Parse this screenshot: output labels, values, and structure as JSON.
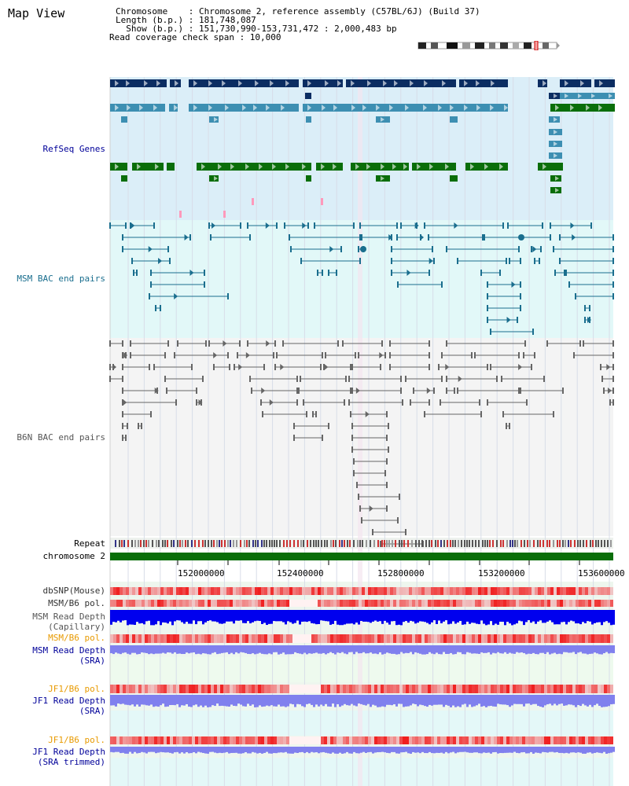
{
  "page": {
    "title": "Map View"
  },
  "info": {
    "chromosome": "Chromosome    : Chromosome 2, reference assembly (C57BL/6J) (Build 37)",
    "length": "Length (b.p.) : 181,748,087",
    "show": "  Show (b.p.) : 151,730,990-153,731,472 : 2,000,483 bp",
    "coverage": "Read coverage check span : 10,000"
  },
  "tracks": {
    "refseq": "RefSeq Genes",
    "msm_bac": "MSM BAC end pairs",
    "b6n_bac": "B6N BAC end pairs",
    "repeat": "Repeat",
    "chromosome": "chromosome 2",
    "dbsnp": "dbSNP(Mouse)",
    "msm_pol1": "MSM/B6 pol.",
    "msm_depth_cap_1": "MSM Read Depth",
    "msm_depth_cap_2": "(Capillary)",
    "msm_pol2": "MSM/B6 pol.",
    "msm_depth_sra_1": "MSM Read Depth",
    "msm_depth_sra_2": "(SRA)",
    "jf1_pol1": "JF1/B6 pol.",
    "jf1_depth_sra_1": "JF1 Read Depth",
    "jf1_depth_sra_2": "(SRA)",
    "jf1_pol2": "JF1/B6 pol.",
    "jf1_depth_trim_1": "JF1 Read Depth",
    "jf1_depth_trim_2": "(SRA trimmed)"
  },
  "axis": {
    "ticks": [
      "152000000",
      "152400000",
      "152800000",
      "153200000",
      "153600000"
    ]
  },
  "colors": {
    "refseq_dark": "#0b2d62",
    "refseq_mid": "#3d8fb2",
    "refseq_green": "#0a6e0a",
    "msm_bac": "#1a6e8e",
    "b6n_bac": "#666666",
    "label_blue": "#000099",
    "label_teal": "#1a6e8e",
    "label_orange": "#e89a00",
    "depth_blue": "#0000ee",
    "depth_lavender": "#8080ee"
  }
}
